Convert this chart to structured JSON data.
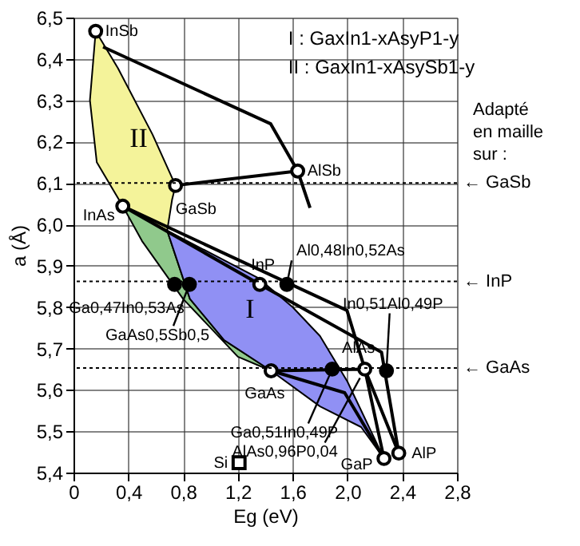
{
  "chart_data": {
    "type": "scatter",
    "xlabel": "Eg (eV)",
    "ylabel": "a (Å)",
    "xlim": [
      0,
      2.8
    ],
    "ylim": [
      5.4,
      6.5
    ],
    "xticks": [
      0,
      {
        "value": 0.4,
        "label": "0,4"
      },
      {
        "value": 0.8,
        "label": "0,8"
      },
      {
        "value": 1.2,
        "label": "1,2"
      },
      {
        "value": 1.6,
        "label": "1,6"
      },
      {
        "value": 2.0,
        "label": "2,0"
      },
      {
        "value": 2.4,
        "label": "2,4"
      },
      {
        "value": 2.8,
        "label": "2,8"
      }
    ],
    "yticks": [
      {
        "value": 5.4,
        "label": "5,4"
      },
      {
        "value": 5.5,
        "label": "5,5"
      },
      {
        "value": 5.6,
        "label": "5,6"
      },
      {
        "value": 5.7,
        "label": "5,7"
      },
      {
        "value": 5.8,
        "label": "5,8"
      },
      {
        "value": 5.9,
        "label": "5,9"
      },
      {
        "value": 6.0,
        "label": "6,0"
      },
      {
        "value": 6.1,
        "label": "6,1"
      },
      {
        "value": 6.2,
        "label": "6,2"
      },
      {
        "value": 6.3,
        "label": "6,3"
      },
      {
        "value": 6.4,
        "label": "6,4"
      },
      {
        "value": 6.5,
        "label": "6,5"
      }
    ],
    "grid": true,
    "series": [
      {
        "type": "area",
        "color": "#f4f39a",
        "x": [
          0.162,
          0.12,
          0.17,
          0.36,
          0.684,
          0.72,
          0.745,
          0.576,
          0.324,
          0.162
        ],
        "values": [
          6.467,
          6.3,
          6.15,
          6.044,
          5.985,
          6.06,
          6.094,
          6.218,
          6.378,
          6.467
        ]
      },
      {
        "type": "area",
        "color": "#90c98c",
        "x": [
          0.36,
          0.684,
          0.85,
          1.1,
          1.443,
          1.2,
          0.8,
          0.5,
          0.36
        ],
        "values": [
          6.044,
          5.985,
          5.82,
          5.72,
          5.646,
          5.68,
          5.82,
          5.96,
          6.044
        ]
      },
      {
        "type": "area",
        "color": "#9090f4",
        "x": [
          0.684,
          1.35,
          1.6,
          1.8,
          2.0,
          2.267,
          2.1,
          1.8,
          1.443,
          1.1,
          0.85,
          0.684
        ],
        "values": [
          5.985,
          5.87,
          5.8,
          5.73,
          5.62,
          5.434,
          5.51,
          5.56,
          5.646,
          5.72,
          5.82,
          5.985
        ]
      },
      {
        "type": "line",
        "color": "#000000",
        "marker": "none",
        "x": [
          0.216,
          1.44,
          1.637,
          1.727
        ],
        "values": [
          6.429,
          6.243,
          6.129,
          6.04
        ]
      },
      {
        "type": "line",
        "color": "#000000",
        "marker": "none",
        "x": [
          0.745,
          1.637
        ],
        "values": [
          6.094,
          6.129
        ]
      },
      {
        "type": "line",
        "color": "#000000",
        "marker": "none",
        "x": [
          0.36,
          1.997,
          2.127,
          2.267
        ],
        "values": [
          6.044,
          5.792,
          5.65,
          5.434
        ]
      },
      {
        "type": "line",
        "color": "#000000",
        "marker": "none",
        "x": [
          0.36,
          1.36,
          2.249,
          2.375
        ],
        "values": [
          6.044,
          5.855,
          5.691,
          5.447
        ]
      },
      {
        "type": "line",
        "color": "#000000",
        "marker": "none",
        "x": [
          1.443,
          2.127,
          2.375
        ],
        "values": [
          5.646,
          5.65,
          5.447
        ]
      },
      {
        "type": "line",
        "color": "#000000",
        "marker": "none",
        "x": [
          1.443,
          1.98,
          2.267
        ],
        "values": [
          5.646,
          5.593,
          5.434
        ]
      },
      {
        "color": "#ffffff",
        "marker": "circle",
        "x": [
          0.162,
          0.36,
          0.745,
          1.637,
          1.36,
          1.443,
          2.127,
          2.267,
          2.375
        ],
        "values": [
          6.467,
          6.044,
          6.094,
          6.129,
          5.855,
          5.646,
          5.65,
          5.434,
          5.447
        ]
      },
      {
        "color": "#000000",
        "marker": "circle",
        "x": [
          0.738,
          0.846,
          1.558,
          1.889,
          2.285
        ],
        "values": [
          5.855,
          5.855,
          5.855,
          5.65,
          5.646
        ]
      },
      {
        "color": "#ffffff",
        "marker": "square",
        "x": [
          1.209
        ],
        "values": [
          5.424
        ]
      }
    ],
    "ref_lines": [
      {
        "axis": "y",
        "value": 6.1,
        "label": "← GaSb",
        "line_style": "dotted"
      },
      {
        "axis": "y",
        "value": 5.862,
        "label": "← InP",
        "line_style": "dotted"
      },
      {
        "axis": "y",
        "value": 5.653,
        "label": "← GaAs",
        "line_style": "dotted"
      }
    ],
    "annotations": [
      "I : GaxIn1-xAsyP1-y",
      "II : GaxIn1-xAsySb1-y",
      "Adapté\nen maille\nsur :",
      "II",
      "I",
      {
        "text": "InSb",
        "x": 0.162,
        "y": 6.467
      },
      {
        "text": "InAs",
        "x": 0.36,
        "y": 6.044
      },
      {
        "text": "GaSb",
        "x": 0.745,
        "y": 6.094
      },
      {
        "text": "AlSb",
        "x": 1.637,
        "y": 6.129
      },
      {
        "text": "InP",
        "x": 1.36,
        "y": 5.855
      },
      {
        "text": "GaAs",
        "x": 1.443,
        "y": 5.646
      },
      {
        "text": "AlAs",
        "x": 2.127,
        "y": 5.65
      },
      {
        "text": "GaP",
        "x": 2.267,
        "y": 5.434
      },
      {
        "text": "AlP",
        "x": 2.375,
        "y": 5.447
      },
      {
        "text": "Si",
        "x": 1.209,
        "y": 5.424
      },
      {
        "text": "Al0,48In0,52As",
        "x": 1.558,
        "y": 5.855
      },
      {
        "text": "Ga0,47In0,53As",
        "x": 0.738,
        "y": 5.855
      },
      {
        "text": "GaAs0,5Sb0,5",
        "x": 0.846,
        "y": 5.855
      },
      {
        "text": "In0,51Al0,49P",
        "x": 2.285,
        "y": 5.646
      },
      {
        "text": "Ga0,51In0,49P",
        "x": 1.889,
        "y": 5.65
      },
      {
        "text": "AlAs0,96P0,04",
        "x": 2.127,
        "y": 5.65
      }
    ]
  }
}
